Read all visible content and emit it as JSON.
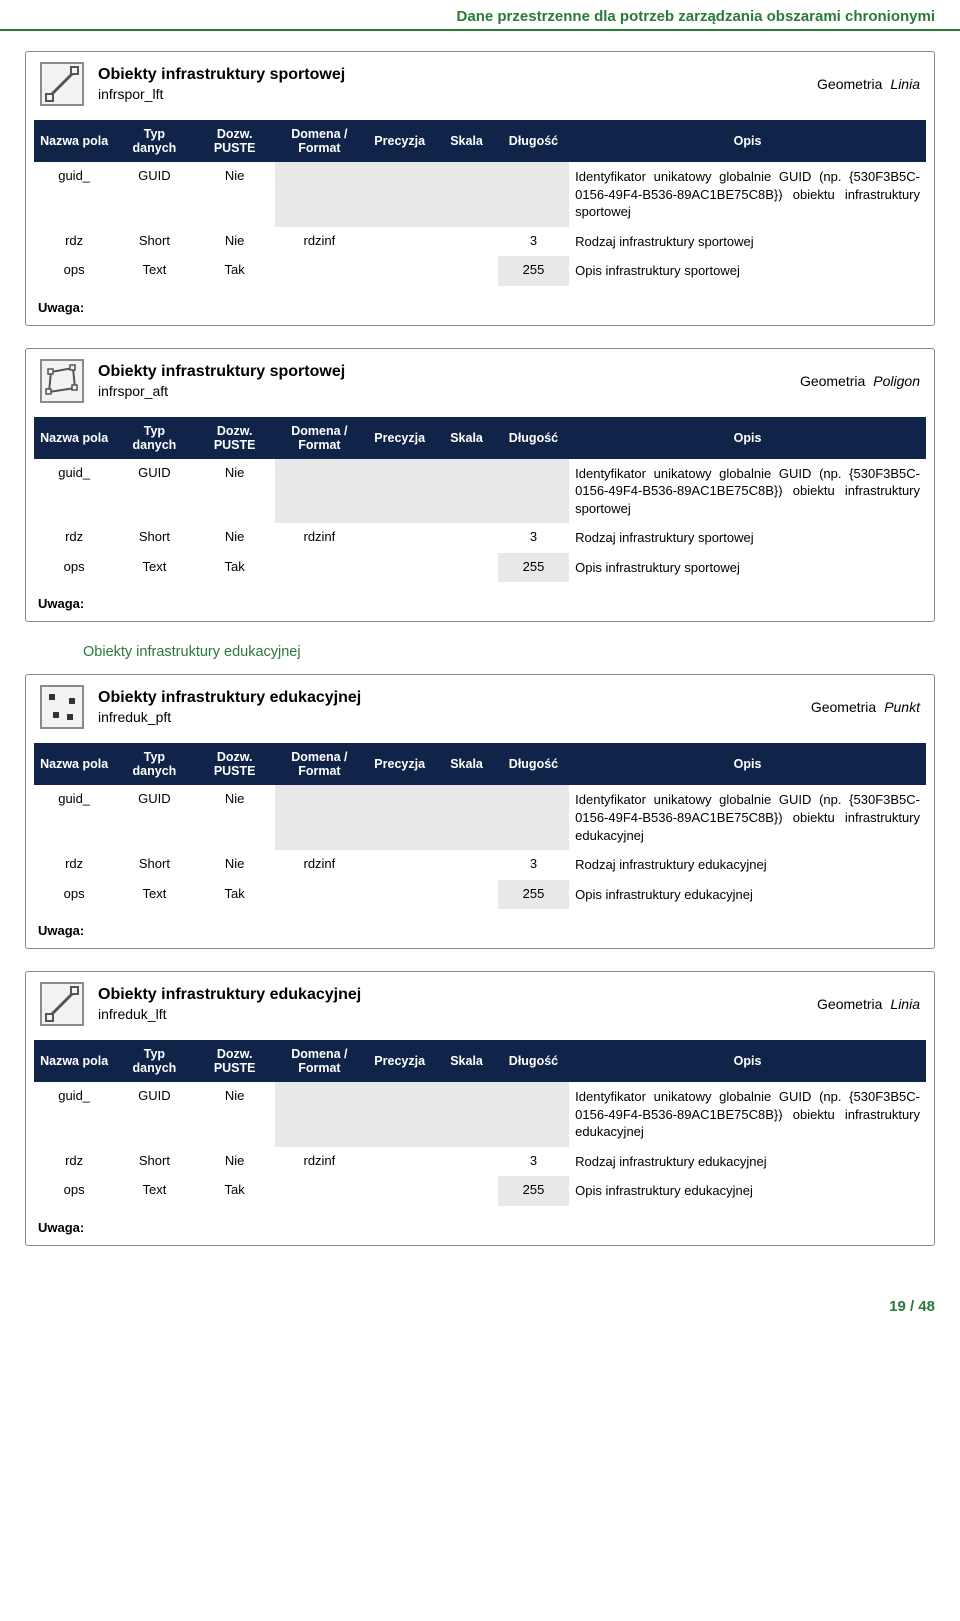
{
  "header_title": "Dane przestrzenne dla potrzeb zarządzania obszarami chronionymi",
  "footer": "19 / 48",
  "geom_label": "Geometria",
  "uwaga_label": "Uwaga:",
  "columns": {
    "nazwa": "Nazwa pola",
    "typ": "Typ danych",
    "dozw": "Dozw. PUSTE",
    "domena": "Domena / Format",
    "precyzja": "Precyzja",
    "skala": "Skala",
    "dlugosc": "Długość",
    "opis": "Opis"
  },
  "section2_title": "Obiekty infrastruktury edukacyjnej",
  "boxes": [
    {
      "title": "Obiekty infrastruktury sportowej",
      "subtitle": "infrspor_lft",
      "geom": "Linia",
      "icon": "line",
      "rows": [
        {
          "nazwa": "guid_",
          "typ": "GUID",
          "dozw": "Nie",
          "domena": "",
          "prec": "",
          "skala": "",
          "dlug": "",
          "opis": "Identyfikator unikatowy globalnie GUID (np. {530F3B5C-0156-49F4-B536-89AC1BE75C8B}) obiektu infrastruktury sportowej",
          "shade": "4567"
        },
        {
          "nazwa": "rdz",
          "typ": "Short",
          "dozw": "Nie",
          "domena": "rdzinf",
          "prec": "",
          "skala": "",
          "dlug": "3",
          "opis": "Rodzaj infrastruktury sportowej",
          "shade": "none"
        },
        {
          "nazwa": "ops",
          "typ": "Text",
          "dozw": "Tak",
          "domena": "",
          "prec": "",
          "skala": "",
          "dlug": "255",
          "opis": "Opis infrastruktury sportowej",
          "shade": "7"
        }
      ]
    },
    {
      "title": "Obiekty infrastruktury sportowej",
      "subtitle": "infrspor_aft",
      "geom": "Poligon",
      "icon": "polygon",
      "rows": [
        {
          "nazwa": "guid_",
          "typ": "GUID",
          "dozw": "Nie",
          "domena": "",
          "prec": "",
          "skala": "",
          "dlug": "",
          "opis": "Identyfikator unikatowy globalnie GUID (np. {530F3B5C-0156-49F4-B536-89AC1BE75C8B}) obiektu infrastruktury sportowej",
          "shade": "4567"
        },
        {
          "nazwa": "rdz",
          "typ": "Short",
          "dozw": "Nie",
          "domena": "rdzinf",
          "prec": "",
          "skala": "",
          "dlug": "3",
          "opis": "Rodzaj infrastruktury sportowej",
          "shade": "none"
        },
        {
          "nazwa": "ops",
          "typ": "Text",
          "dozw": "Tak",
          "domena": "",
          "prec": "",
          "skala": "",
          "dlug": "255",
          "opis": "Opis infrastruktury sportowej",
          "shade": "7"
        }
      ]
    },
    {
      "title": "Obiekty infrastruktury edukacyjnej",
      "subtitle": "infreduk_pft",
      "geom": "Punkt",
      "icon": "point",
      "rows": [
        {
          "nazwa": "guid_",
          "typ": "GUID",
          "dozw": "Nie",
          "domena": "",
          "prec": "",
          "skala": "",
          "dlug": "",
          "opis": "Identyfikator unikatowy globalnie GUID (np. {530F3B5C-0156-49F4-B536-89AC1BE75C8B}) obiektu infrastruktury edukacyjnej",
          "shade": "4567"
        },
        {
          "nazwa": "rdz",
          "typ": "Short",
          "dozw": "Nie",
          "domena": "rdzinf",
          "prec": "",
          "skala": "",
          "dlug": "3",
          "opis": "Rodzaj infrastruktury edukacyjnej",
          "shade": "none"
        },
        {
          "nazwa": "ops",
          "typ": "Text",
          "dozw": "Tak",
          "domena": "",
          "prec": "",
          "skala": "",
          "dlug": "255",
          "opis": "Opis infrastruktury edukacyjnej",
          "shade": "7"
        }
      ]
    },
    {
      "title": "Obiekty infrastruktury edukacyjnej",
      "subtitle": "infreduk_lft",
      "geom": "Linia",
      "icon": "line",
      "rows": [
        {
          "nazwa": "guid_",
          "typ": "GUID",
          "dozw": "Nie",
          "domena": "",
          "prec": "",
          "skala": "",
          "dlug": "",
          "opis": "Identyfikator unikatowy globalnie GUID (np. {530F3B5C-0156-49F4-B536-89AC1BE75C8B}) obiektu infrastruktury edukacyjnej",
          "shade": "4567"
        },
        {
          "nazwa": "rdz",
          "typ": "Short",
          "dozw": "Nie",
          "domena": "rdzinf",
          "prec": "",
          "skala": "",
          "dlug": "3",
          "opis": "Rodzaj infrastruktury edukacyjnej",
          "shade": "none"
        },
        {
          "nazwa": "ops",
          "typ": "Text",
          "dozw": "Tak",
          "domena": "",
          "prec": "",
          "skala": "",
          "dlug": "255",
          "opis": "Opis infrastruktury edukacyjnej",
          "shade": "7"
        }
      ]
    }
  ]
}
